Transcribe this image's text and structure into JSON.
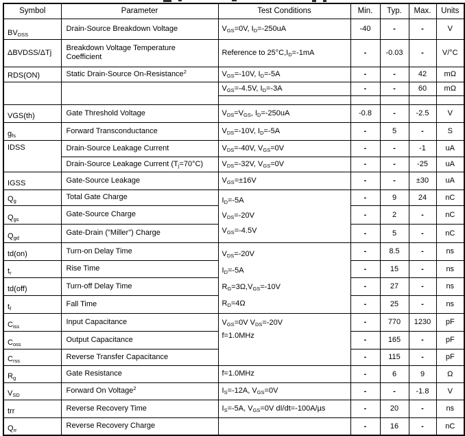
{
  "header": [
    "Symbol",
    "Parameter",
    "Test Conditions",
    "Min.",
    "Typ.",
    "Max.",
    "Units"
  ],
  "rows": [
    {
      "symbol": "BV_{DSS}",
      "parameter": "Drain-Source Breakdown Voltage",
      "conditions": "V_{GS}=0V, I_{D}=-250uA",
      "min": "-40",
      "typ": "-",
      "max": "-",
      "units": "V"
    },
    {
      "symbol": "ΔBVDSS/ΔTj",
      "parameter": "Breakdown Voltage Temperature\nCoefficient",
      "conditions": "Reference to 25°C,I_{D}=-1mA",
      "min": "-",
      "typ": "-0.03",
      "max": "-",
      "units": "V/°C"
    },
    {
      "symbol": "RDS(ON)",
      "parameter": "Static Drain-Source On-Resistance^{2}",
      "conditions": "V_{GS}=-10V, I_{D}=-5A",
      "min": "-",
      "typ": "-",
      "max": "42",
      "units": "mΩ"
    },
    {
      "symbol": "",
      "parameter": "",
      "conditions": "V_{GS}=-4.5V, I_{D}=-3A",
      "min": "-",
      "typ": "-",
      "max": "60",
      "units": "mΩ"
    },
    {
      "symbol": "VGS(th)",
      "parameter": "Gate Threshold Voltage",
      "conditions": "V_{DS}=V_{GS}, I_{D}=-250uA",
      "min": "-0.8",
      "typ": "-",
      "max": "-2.5",
      "units": "V"
    },
    {
      "symbol": "g_{fs}",
      "parameter": "Forward Transconductance",
      "conditions": "V_{DS}=-10V, I_{D}=-5A",
      "min": "-",
      "typ": "5",
      "max": "-",
      "units": "S"
    },
    {
      "symbol": "IDSS",
      "parameter": "Drain-Source Leakage Current",
      "conditions": "V_{DS}=-40V, V_{GS}=0V",
      "min": "-",
      "typ": "-",
      "max": "-1",
      "units": "uA"
    },
    {
      "symbol": "",
      "parameter": "Drain-Source Leakage Current (T_{j}=70°C)",
      "conditions": "V_{DS}=-32V, V_{GS}=0V",
      "min": "-",
      "typ": "-",
      "max": "-25",
      "units": "uA"
    },
    {
      "symbol": "IGSS",
      "parameter": "Gate-Source Leakage",
      "conditions": "V_{GS}=±16V",
      "min": "-",
      "typ": "-",
      "max": "±30",
      "units": "uA"
    },
    {
      "symbol": "Q_{g}",
      "parameter": "Total Gate Charge",
      "conditions": "I_{D}=-5A\nV_{DS}=-20V\nV_{GS}=-4.5V",
      "min": "-",
      "typ": "9",
      "max": "24",
      "units": "nC"
    },
    {
      "symbol": "Q_{gs}",
      "parameter": "Gate-Source Charge",
      "min": "-",
      "typ": "2",
      "max": "-",
      "units": "nC"
    },
    {
      "symbol": "Q_{gd}",
      "parameter": "Gate-Drain (\"Miller\") Charge",
      "min": "-",
      "typ": "5",
      "max": "-",
      "units": "nC"
    },
    {
      "symbol": "td(on)",
      "parameter": "Turn-on Delay Time",
      "conditions": "V_{DS}=-20V\nI_{D}=-5A\nR_{G}=3Ω,V_{GS}=-10V\nR_{D}=4Ω",
      "min": "-",
      "typ": "8.5",
      "max": "-",
      "units": "ns"
    },
    {
      "symbol": "t_{r}",
      "parameter": "Rise Time",
      "min": "-",
      "typ": "15",
      "max": "-",
      "units": "ns"
    },
    {
      "symbol": "td(off)",
      "parameter": "Turn-off Delay Time",
      "min": "-",
      "typ": "27",
      "max": "-",
      "units": "ns"
    },
    {
      "symbol": "t_{f}",
      "parameter": "Fall Time",
      "min": "-",
      "typ": "25",
      "max": "-",
      "units": "ns"
    },
    {
      "symbol": "C_{iss}",
      "parameter": "Input Capacitance",
      "conditions": "V_{GS}=0V V_{DS}=-20V\nf=1.0MHz",
      "min": "-",
      "typ": "770",
      "max": "1230",
      "units": "pF"
    },
    {
      "symbol": "C_{oss}",
      "parameter": "Output Capacitance",
      "min": "-",
      "typ": "165",
      "max": "-",
      "units": "pF"
    },
    {
      "symbol": "C_{rss}",
      "parameter": "Reverse Transfer Capacitance",
      "min": "-",
      "typ": "115",
      "max": "-",
      "units": "pF"
    },
    {
      "symbol": "R_{g}",
      "parameter": "Gate Resistance",
      "conditions": "f=1.0MHz",
      "min": "-",
      "typ": "6",
      "max": "9",
      "units": "Ω"
    },
    {
      "symbol": "V_{SD}",
      "parameter": "Forward On Voltage^{2}",
      "conditions": "I_{S}=-12A, V_{GS}=0V",
      "min": "-",
      "typ": "-",
      "max": "-1.8",
      "units": "V"
    },
    {
      "symbol": "trr",
      "parameter": "Reverse Recovery Time",
      "conditions": "I_{S}=-5A, V_{GS}=0V dI/dt=-100A/µs",
      "min": "-",
      "typ": "20",
      "max": "-",
      "units": "ns"
    },
    {
      "symbol": "Q_{rr}",
      "parameter": "Reverse Recovery Charge",
      "conditions": "",
      "min": "-",
      "typ": "16",
      "max": "-",
      "units": "nC"
    }
  ]
}
